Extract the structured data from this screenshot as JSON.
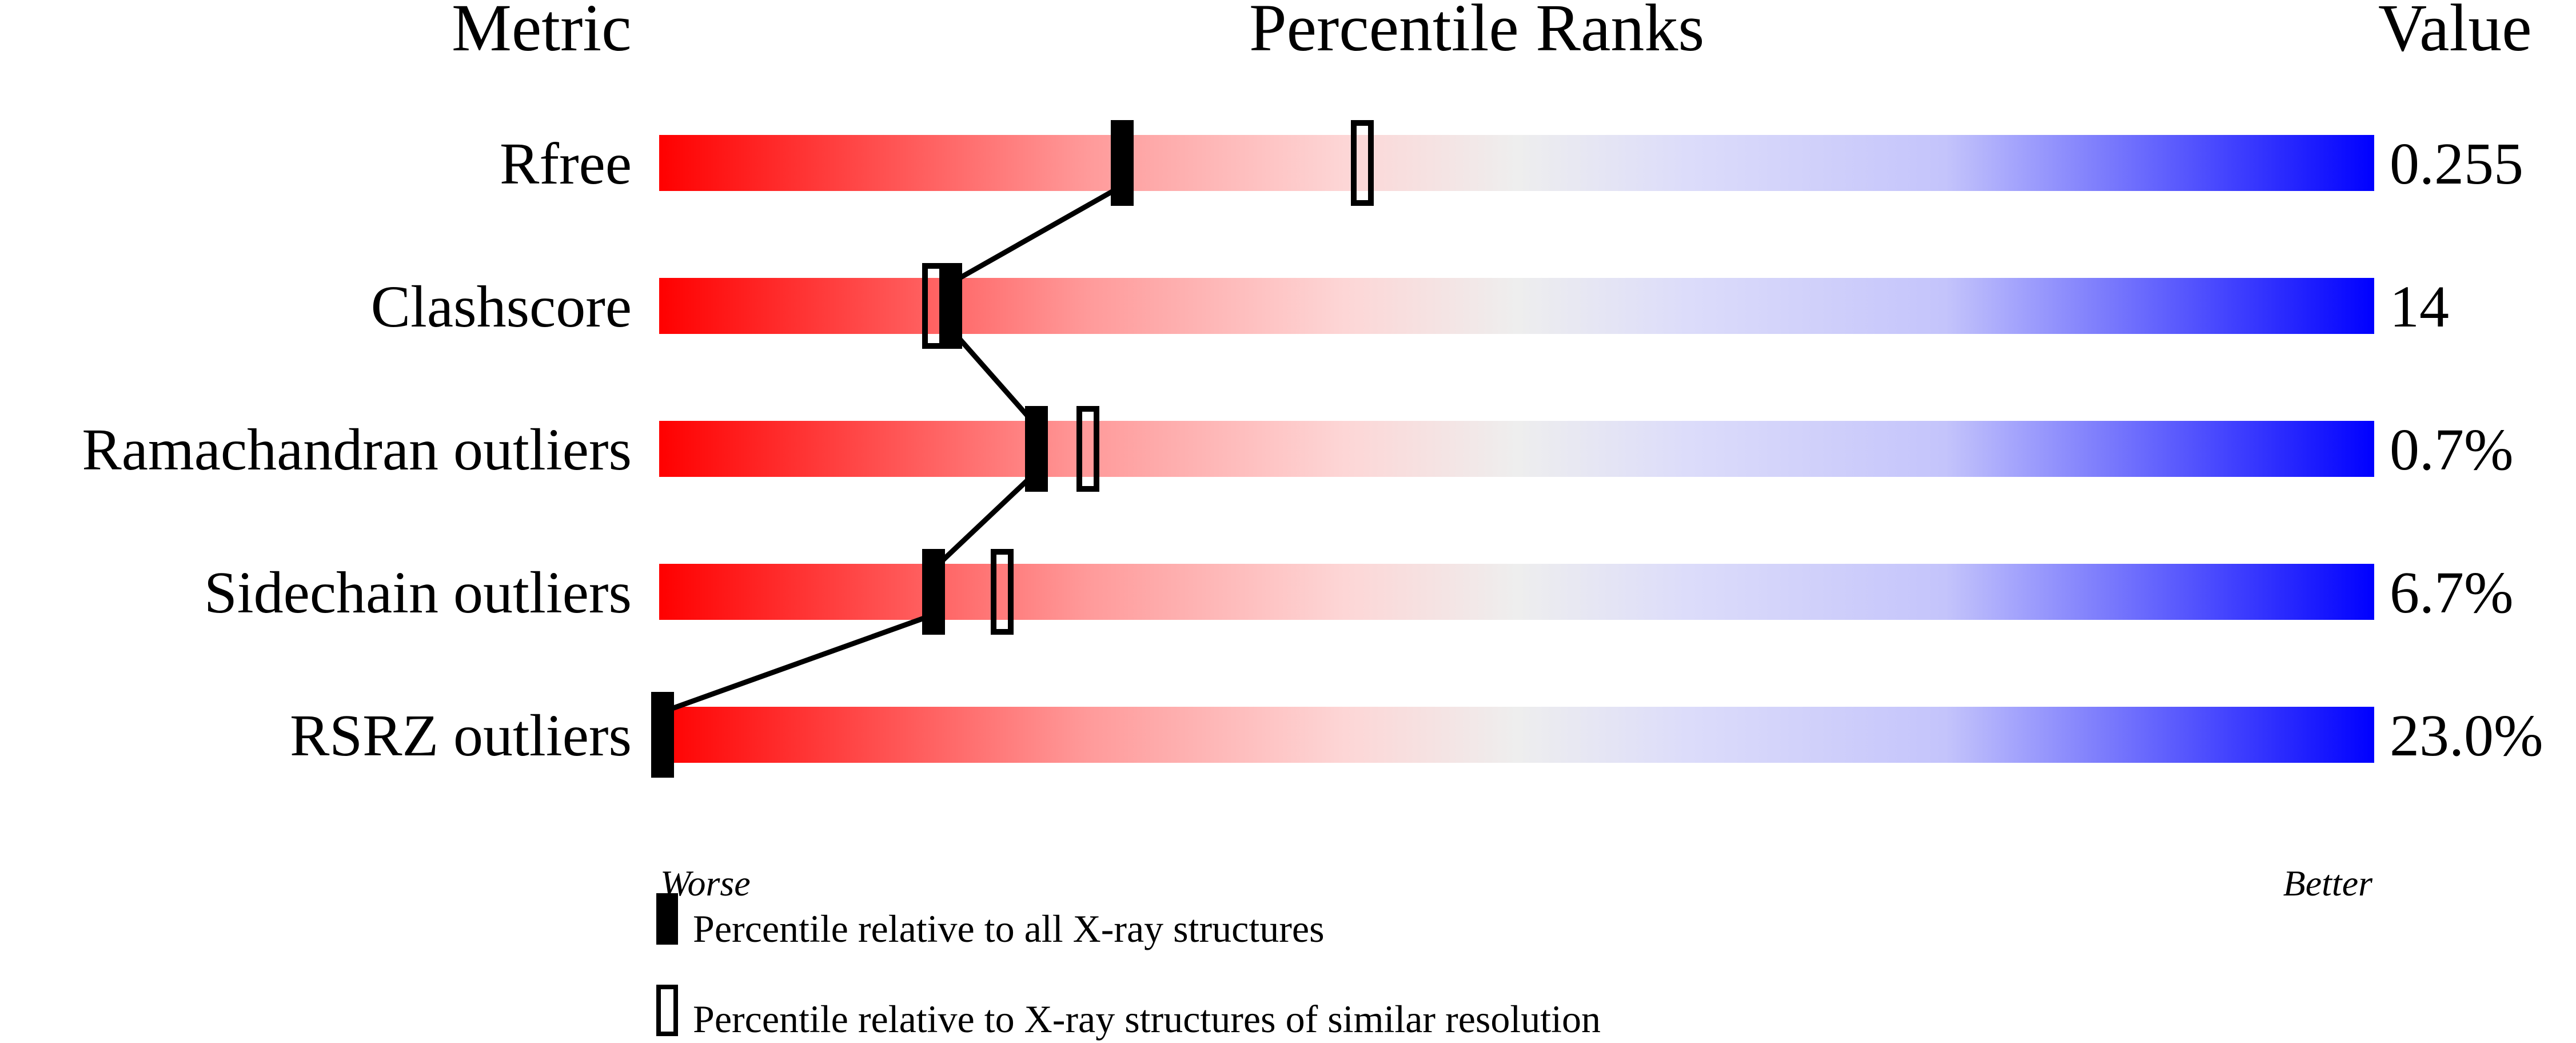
{
  "chart_data": {
    "type": "percentile-slider",
    "headers": {
      "metric": "Metric",
      "ranks": "Percentile Ranks",
      "value": "Value"
    },
    "xlim": [
      0,
      100
    ],
    "axis_labels": {
      "worse": "Worse",
      "better": "Better"
    },
    "gradient_colors": {
      "worse": "#ff0000",
      "middle": "#eeeeee",
      "better": "#0000ff"
    },
    "metrics": [
      {
        "name": "Rfree",
        "value": "0.255",
        "percentile_all": 27,
        "percentile_similar": 41
      },
      {
        "name": "Clashscore",
        "value": "14",
        "percentile_all": 17,
        "percentile_similar": 16
      },
      {
        "name": "Ramachandran outliers",
        "value": "0.7%",
        "percentile_all": 22,
        "percentile_similar": 25
      },
      {
        "name": "Sidechain outliers",
        "value": "6.7%",
        "percentile_all": 16,
        "percentile_similar": 20
      },
      {
        "name": "RSRZ outliers",
        "value": "23.0%",
        "percentile_all": 0,
        "percentile_similar": null
      }
    ],
    "legend": {
      "all": "Percentile relative to all X-ray structures",
      "similar": "Percentile relative to X-ray structures of similar resolution"
    }
  }
}
